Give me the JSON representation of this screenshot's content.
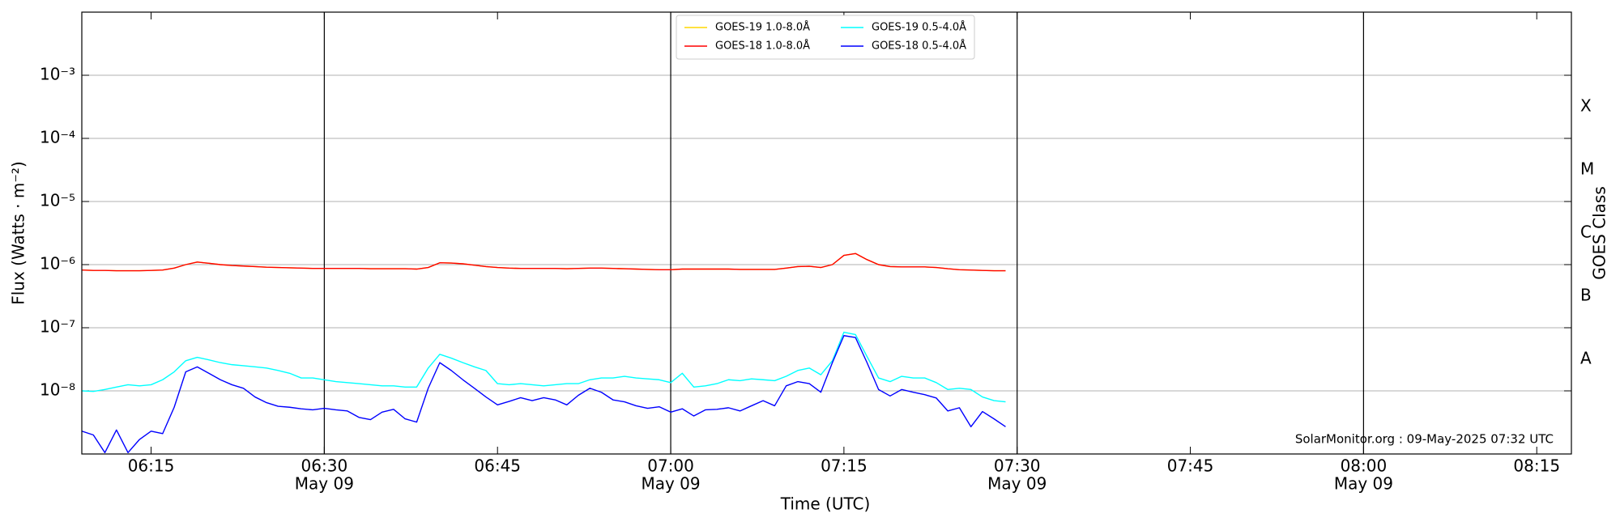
{
  "chart_data": {
    "type": "line",
    "y_label": "Flux (Watts · m⁻²)",
    "x_label": "Time (UTC)",
    "y2_label": "GOES Class",
    "annotation": "SolarMonitor.org : 09-May-2025 07:32 UTC",
    "log_y": true,
    "grid": true,
    "legend_loc": "upper center",
    "xlim": [
      "06:09",
      "08:18"
    ],
    "xticks": [
      "06:15",
      {
        "value": "06:30",
        "label": "06:30",
        "date": "May 09"
      },
      "06:45",
      {
        "value": "07:00",
        "label": "07:00",
        "date": "May 09"
      },
      "07:15",
      {
        "value": "07:30",
        "label": "07:30",
        "date": "May 09"
      },
      "07:45",
      {
        "value": "08:00",
        "label": "08:00",
        "date": "May 09"
      },
      "08:15"
    ],
    "ylim": [
      1e-09,
      0.01
    ],
    "yticks": [
      {
        "value": 1e-08,
        "label": "10⁻⁸"
      },
      {
        "value": 1e-07,
        "label": "10⁻⁷"
      },
      {
        "value": 1e-06,
        "label": "10⁻⁶"
      },
      {
        "value": 1e-05,
        "label": "10⁻⁵"
      },
      {
        "value": 0.0001,
        "label": "10⁻⁴"
      },
      {
        "value": 0.001,
        "label": "10⁻³"
      }
    ],
    "goes_classes": [
      {
        "value": 1e-08,
        "label": "A"
      },
      {
        "value": 1e-07,
        "label": "B"
      },
      {
        "value": 1e-06,
        "label": "C"
      },
      {
        "value": 1e-05,
        "label": "M"
      },
      {
        "value": 0.0001,
        "label": "X"
      }
    ],
    "x": [
      "06:09",
      "06:10",
      "06:11",
      "06:12",
      "06:13",
      "06:14",
      "06:15",
      "06:16",
      "06:17",
      "06:18",
      "06:19",
      "06:20",
      "06:21",
      "06:22",
      "06:23",
      "06:24",
      "06:25",
      "06:26",
      "06:27",
      "06:28",
      "06:29",
      "06:30",
      "06:31",
      "06:32",
      "06:33",
      "06:34",
      "06:35",
      "06:36",
      "06:37",
      "06:38",
      "06:39",
      "06:40",
      "06:41",
      "06:42",
      "06:43",
      "06:44",
      "06:45",
      "06:46",
      "06:47",
      "06:48",
      "06:49",
      "06:50",
      "06:51",
      "06:52",
      "06:53",
      "06:54",
      "06:55",
      "06:56",
      "06:57",
      "06:58",
      "06:59",
      "07:00",
      "07:01",
      "07:02",
      "07:03",
      "07:04",
      "07:05",
      "07:06",
      "07:07",
      "07:08",
      "07:09",
      "07:10",
      "07:11",
      "07:12",
      "07:13",
      "07:14",
      "07:15",
      "07:16",
      "07:17",
      "07:18",
      "07:19",
      "07:20",
      "07:21",
      "07:22",
      "07:23",
      "07:24",
      "07:25",
      "07:26",
      "07:27",
      "07:28",
      "07:29"
    ],
    "series": [
      {
        "name": "GOES-19 1.0-8.0Å",
        "color": "#ffd700",
        "values": [
          8.2e-07,
          8.1e-07,
          8.1e-07,
          8e-07,
          8e-07,
          8e-07,
          8.1e-07,
          8.2e-07,
          8.8e-07,
          1e-06,
          1.1e-06,
          1.05e-06,
          1e-06,
          9.7e-07,
          9.5e-07,
          9.3e-07,
          9.1e-07,
          9e-07,
          8.9e-07,
          8.8e-07,
          8.7e-07,
          8.7e-07,
          8.7e-07,
          8.7e-07,
          8.7e-07,
          8.6e-07,
          8.6e-07,
          8.6e-07,
          8.6e-07,
          8.5e-07,
          9e-07,
          1.07e-06,
          1.06e-06,
          1.03e-06,
          9.8e-07,
          9.3e-07,
          9e-07,
          8.8e-07,
          8.7e-07,
          8.7e-07,
          8.7e-07,
          8.7e-07,
          8.6e-07,
          8.7e-07,
          8.8e-07,
          8.8e-07,
          8.7e-07,
          8.6e-07,
          8.5e-07,
          8.4e-07,
          8.3e-07,
          8.3e-07,
          8.5e-07,
          8.5e-07,
          8.5e-07,
          8.5e-07,
          8.5e-07,
          8.4e-07,
          8.4e-07,
          8.4e-07,
          8.4e-07,
          8.8e-07,
          9.3e-07,
          9.4e-07,
          9e-07,
          1e-06,
          1.4e-06,
          1.5e-06,
          1.2e-06,
          1e-06,
          9.3e-07,
          9.2e-07,
          9.2e-07,
          9.2e-07,
          9e-07,
          8.6e-07,
          8.3e-07,
          8.2e-07,
          8.1e-07,
          8e-07,
          8e-07
        ]
      },
      {
        "name": "GOES-18 1.0-8.0Å",
        "color": "#ff0000",
        "values": [
          8.2e-07,
          8.1e-07,
          8.1e-07,
          8e-07,
          8e-07,
          8e-07,
          8.1e-07,
          8.2e-07,
          8.8e-07,
          1e-06,
          1.1e-06,
          1.05e-06,
          1e-06,
          9.7e-07,
          9.5e-07,
          9.3e-07,
          9.1e-07,
          9e-07,
          8.9e-07,
          8.8e-07,
          8.7e-07,
          8.7e-07,
          8.7e-07,
          8.7e-07,
          8.7e-07,
          8.6e-07,
          8.6e-07,
          8.6e-07,
          8.6e-07,
          8.5e-07,
          9e-07,
          1.07e-06,
          1.06e-06,
          1.03e-06,
          9.8e-07,
          9.3e-07,
          9e-07,
          8.8e-07,
          8.7e-07,
          8.7e-07,
          8.7e-07,
          8.7e-07,
          8.6e-07,
          8.7e-07,
          8.8e-07,
          8.8e-07,
          8.7e-07,
          8.6e-07,
          8.5e-07,
          8.4e-07,
          8.3e-07,
          8.3e-07,
          8.5e-07,
          8.5e-07,
          8.5e-07,
          8.5e-07,
          8.5e-07,
          8.4e-07,
          8.4e-07,
          8.4e-07,
          8.4e-07,
          8.8e-07,
          9.3e-07,
          9.4e-07,
          9e-07,
          1e-06,
          1.4e-06,
          1.5e-06,
          1.2e-06,
          1e-06,
          9.3e-07,
          9.2e-07,
          9.2e-07,
          9.2e-07,
          9e-07,
          8.6e-07,
          8.3e-07,
          8.2e-07,
          8.1e-07,
          8e-07,
          8e-07
        ]
      },
      {
        "name": "GOES-19 0.5-4.0Å",
        "color": "#00ffff",
        "values": [
          1e-08,
          9.8e-09,
          1.05e-08,
          1.15e-08,
          1.25e-08,
          1.2e-08,
          1.25e-08,
          1.5e-08,
          2e-08,
          3e-08,
          3.4e-08,
          3.1e-08,
          2.8e-08,
          2.6e-08,
          2.5e-08,
          2.4e-08,
          2.3e-08,
          2.1e-08,
          1.9e-08,
          1.6e-08,
          1.6e-08,
          1.5e-08,
          1.4e-08,
          1.35e-08,
          1.3e-08,
          1.25e-08,
          1.2e-08,
          1.2e-08,
          1.15e-08,
          1.15e-08,
          2.3e-08,
          3.8e-08,
          3.3e-08,
          2.8e-08,
          2.4e-08,
          2.1e-08,
          1.3e-08,
          1.25e-08,
          1.3e-08,
          1.25e-08,
          1.2e-08,
          1.25e-08,
          1.3e-08,
          1.3e-08,
          1.5e-08,
          1.6e-08,
          1.6e-08,
          1.7e-08,
          1.6e-08,
          1.55e-08,
          1.5e-08,
          1.35e-08,
          1.9e-08,
          1.15e-08,
          1.2e-08,
          1.3e-08,
          1.5e-08,
          1.45e-08,
          1.55e-08,
          1.5e-08,
          1.45e-08,
          1.7e-08,
          2.1e-08,
          2.3e-08,
          1.8e-08,
          3e-08,
          8.5e-08,
          7.8e-08,
          3.5e-08,
          1.6e-08,
          1.4e-08,
          1.7e-08,
          1.6e-08,
          1.6e-08,
          1.35e-08,
          1.05e-08,
          1.1e-08,
          1.05e-08,
          8e-09,
          7e-09,
          6.7e-09
        ]
      },
      {
        "name": "GOES-18 0.5-4.0Å",
        "color": "#0000ff",
        "values": [
          2.3e-09,
          2e-09,
          1.05e-09,
          2.4e-09,
          1.05e-09,
          1.7e-09,
          2.3e-09,
          2.1e-09,
          5.5e-09,
          2e-08,
          2.4e-08,
          1.9e-08,
          1.5e-08,
          1.25e-08,
          1.1e-08,
          8e-09,
          6.5e-09,
          5.7e-09,
          5.5e-09,
          5.2e-09,
          5e-09,
          5.3e-09,
          5e-09,
          4.8e-09,
          3.8e-09,
          3.5e-09,
          4.6e-09,
          5.1e-09,
          3.6e-09,
          3.2e-09,
          1.1e-08,
          2.8e-08,
          2.1e-08,
          1.5e-08,
          1.1e-08,
          8e-09,
          6e-09,
          6.8e-09,
          7.8e-09,
          7e-09,
          7.8e-09,
          7.2e-09,
          6e-09,
          8.5e-09,
          1.1e-08,
          9.5e-09,
          7.2e-09,
          6.7e-09,
          5.8e-09,
          5.3e-09,
          5.6e-09,
          4.6e-09,
          5.2e-09,
          4e-09,
          5e-09,
          5.1e-09,
          5.4e-09,
          4.8e-09,
          5.8e-09,
          7e-09,
          5.8e-09,
          1.2e-08,
          1.4e-08,
          1.3e-08,
          9.5e-09,
          2.8e-08,
          7.5e-08,
          7e-08,
          2.8e-08,
          1.05e-08,
          8.3e-09,
          1.05e-08,
          9.5e-09,
          8.7e-09,
          7.7e-09,
          4.8e-09,
          5.4e-09,
          2.7e-09,
          4.7e-09,
          3.6e-09,
          2.7e-09
        ]
      }
    ]
  }
}
